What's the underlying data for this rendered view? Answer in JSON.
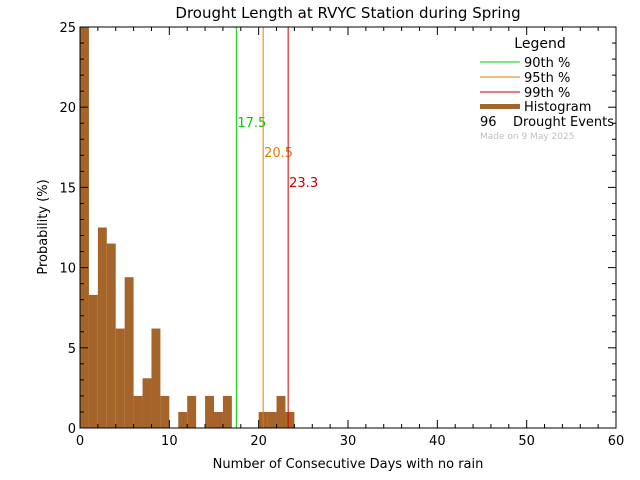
{
  "chart_data": {
    "type": "bar",
    "title": "Drought Length at RVYC Station during Spring",
    "xlabel": "Number of Consecutive Days with no rain",
    "ylabel": "Probability (%)",
    "xlim": [
      0,
      60
    ],
    "ylim": [
      0,
      25
    ],
    "x_ticks": [
      0,
      10,
      20,
      30,
      40,
      50,
      60
    ],
    "y_ticks": [
      0,
      5,
      10,
      15,
      20,
      25
    ],
    "grid": false,
    "bin_width": 1,
    "histogram": [
      {
        "x": 0,
        "value": 25.0
      },
      {
        "x": 1,
        "value": 8.3
      },
      {
        "x": 2,
        "value": 12.5
      },
      {
        "x": 3,
        "value": 11.5
      },
      {
        "x": 4,
        "value": 6.2
      },
      {
        "x": 5,
        "value": 9.4
      },
      {
        "x": 6,
        "value": 2.0
      },
      {
        "x": 7,
        "value": 3.1
      },
      {
        "x": 8,
        "value": 6.2
      },
      {
        "x": 9,
        "value": 2.0
      },
      {
        "x": 11,
        "value": 1.0
      },
      {
        "x": 12,
        "value": 2.0
      },
      {
        "x": 14,
        "value": 2.0
      },
      {
        "x": 15,
        "value": 1.0
      },
      {
        "x": 16,
        "value": 2.0
      },
      {
        "x": 20,
        "value": 1.0
      },
      {
        "x": 21,
        "value": 1.0
      },
      {
        "x": 22,
        "value": 2.0
      },
      {
        "x": 23,
        "value": 1.0
      }
    ],
    "percentiles": [
      {
        "name": "90th %",
        "value": 17.5,
        "label": "17.5",
        "color": "#00cc00"
      },
      {
        "name": "95th %",
        "value": 20.5,
        "label": "20.5",
        "color": "#e08000"
      },
      {
        "name": "99th %",
        "value": 23.3,
        "label": "23.3",
        "color": "#cc0000"
      }
    ],
    "histogram_color": "#a5642a",
    "legend": {
      "title": "Legend",
      "placement": "top-right",
      "histogram_label": "Histogram",
      "events_count": "96",
      "events_label": "Drought Events",
      "note": "Made on 9 May 2025"
    }
  }
}
